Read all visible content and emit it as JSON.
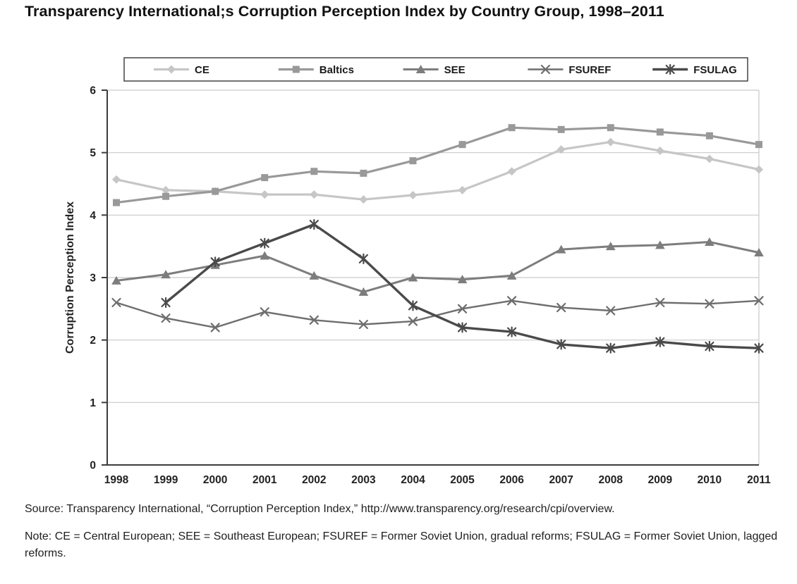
{
  "title": "Transparency International;s Corruption Perception Index by Country Group, 1998–2011",
  "source": "Source: Transparency International, “Corruption Perception Index,” http://www.transparency.org/research/cpi/overview.",
  "note": "Note: CE = Central European; SEE = Southeast European; FSUREF = Former Soviet Union, gradual reforms; FSULAG = Former Soviet Union, lagged reforms.",
  "chart_data": {
    "type": "line",
    "title": "Transparency International;s Corruption Perception Index by Country Group, 1998–2011",
    "xlabel": "",
    "ylabel": "Corruption Perception Index",
    "ylim": [
      0,
      6
    ],
    "yticks": [
      0,
      1,
      2,
      3,
      4,
      5,
      6
    ],
    "grid": "horizontal",
    "legend_position": "top",
    "x": [
      1998,
      1999,
      2000,
      2001,
      2002,
      2003,
      2004,
      2005,
      2006,
      2007,
      2008,
      2009,
      2010,
      2011
    ],
    "series": [
      {
        "name": "CE",
        "marker": "diamond",
        "color": "#c6c6c6",
        "width": 3.2,
        "values": [
          4.57,
          4.4,
          4.38,
          4.33,
          4.33,
          4.25,
          4.32,
          4.4,
          4.7,
          5.05,
          5.17,
          5.03,
          4.9,
          4.73
        ]
      },
      {
        "name": "Baltics",
        "marker": "square",
        "color": "#999999",
        "width": 3.2,
        "values": [
          4.2,
          4.3,
          4.38,
          4.6,
          4.7,
          4.67,
          4.87,
          5.13,
          5.4,
          5.37,
          5.4,
          5.33,
          5.27,
          5.13
        ]
      },
      {
        "name": "SEE",
        "marker": "triangle",
        "color": "#7d7d7d",
        "width": 3.0,
        "values": [
          2.95,
          3.05,
          3.2,
          3.35,
          3.03,
          2.77,
          3.0,
          2.97,
          3.03,
          3.45,
          3.5,
          3.52,
          3.57,
          3.4
        ]
      },
      {
        "name": "FSUREF",
        "marker": "x",
        "color": "#6e6e6e",
        "width": 2.4,
        "values": [
          2.6,
          2.35,
          2.2,
          2.45,
          2.32,
          2.25,
          2.3,
          2.5,
          2.63,
          2.52,
          2.47,
          2.6,
          2.58,
          2.63
        ]
      },
      {
        "name": "FSULAG",
        "marker": "asterisk",
        "color": "#4a4a4a",
        "width": 3.4,
        "values": [
          null,
          2.6,
          3.25,
          3.55,
          3.85,
          3.3,
          2.55,
          2.2,
          2.13,
          1.93,
          1.87,
          1.97,
          1.9,
          1.87
        ]
      }
    ]
  }
}
